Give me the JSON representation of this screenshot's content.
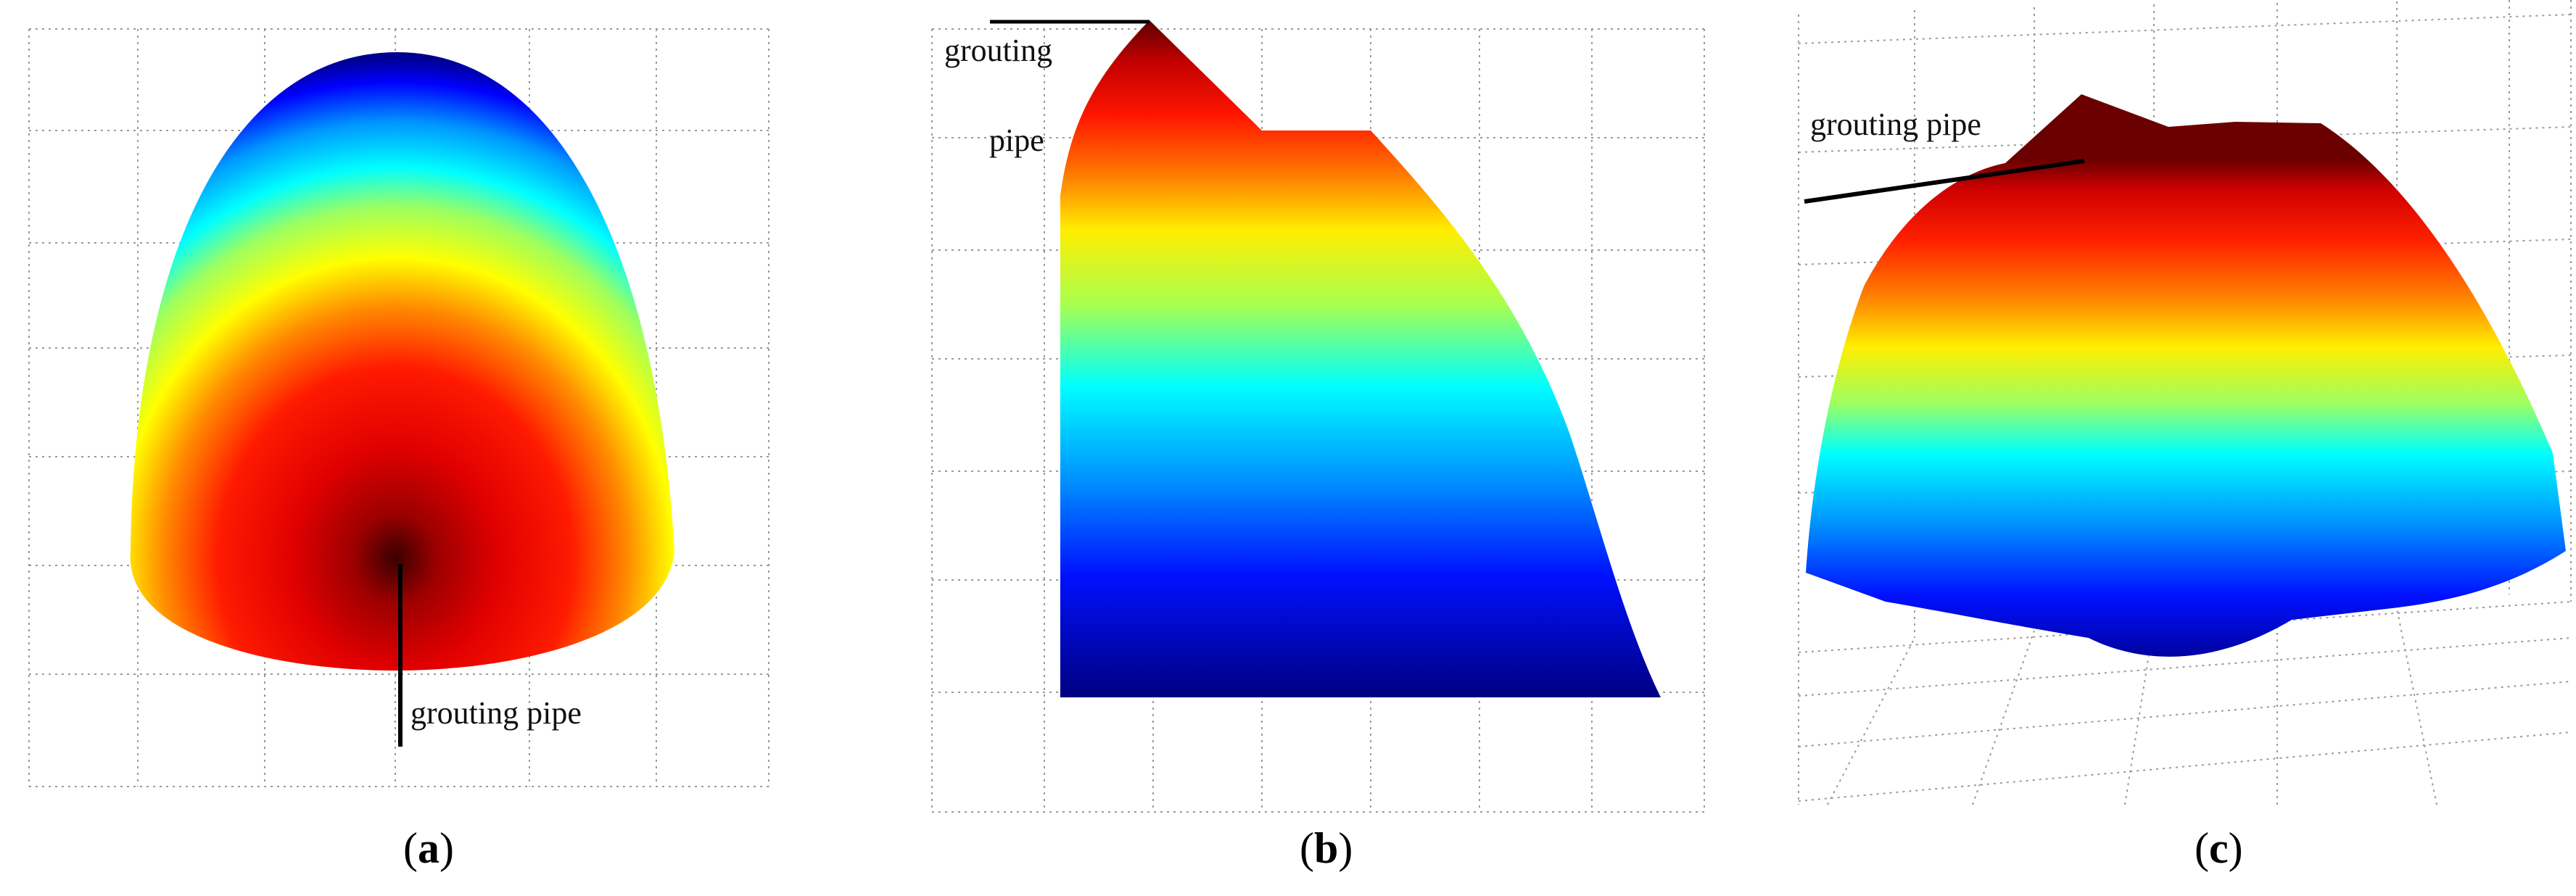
{
  "panels": [
    {
      "id": "a",
      "caption_letter": "a",
      "annotation": "grouting pipe"
    },
    {
      "id": "b",
      "caption_letter": "b",
      "annotation_line1": "grouting",
      "annotation_line2": "pipe"
    },
    {
      "id": "c",
      "caption_letter": "c",
      "annotation": "grouting pipe"
    }
  ],
  "colors": {
    "grid": "#9a9a9a",
    "pipe": "#000000",
    "colormap": [
      "#00008f",
      "#0000ff",
      "#00aaff",
      "#00ffff",
      "#7fff7f",
      "#ffff00",
      "#ff8000",
      "#ff0000",
      "#800000"
    ]
  }
}
